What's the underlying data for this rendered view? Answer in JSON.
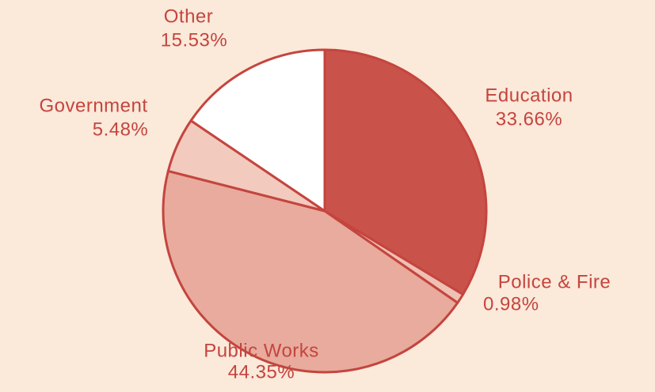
{
  "chart_data": {
    "type": "pie",
    "categories": [
      "Education",
      "Police & Fire",
      "Public Works",
      "Government",
      "Other"
    ],
    "values": [
      33.66,
      0.98,
      44.35,
      5.48,
      15.53
    ],
    "value_labels": [
      "33.66%",
      "0.98%",
      "44.35%",
      "5.48%",
      "15.53%"
    ],
    "colors": [
      "#c9524b",
      "#efc0b4",
      "#e8ab9e",
      "#f2cabe",
      "#ffffff"
    ]
  }
}
